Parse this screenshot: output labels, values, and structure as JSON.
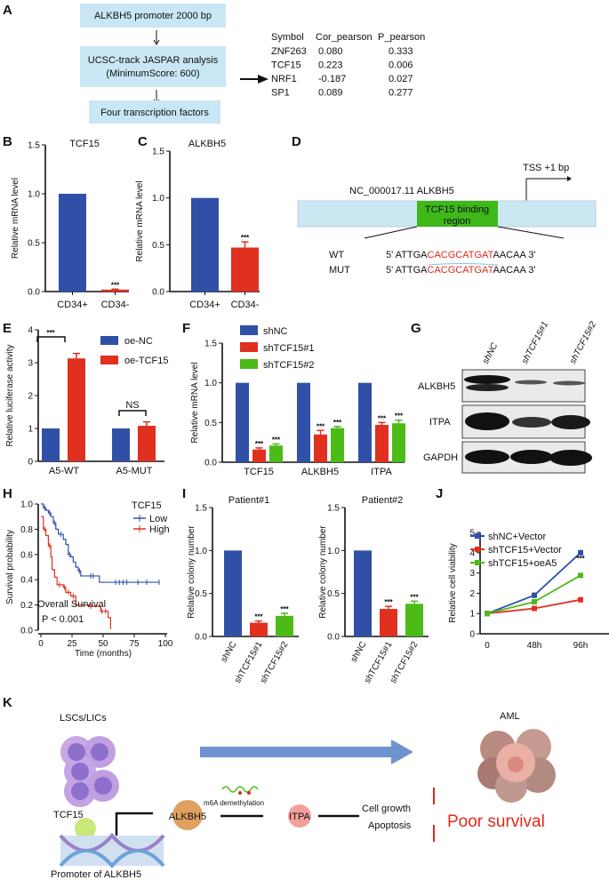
{
  "panel_labels": [
    "A",
    "B",
    "C",
    "D",
    "E",
    "F",
    "G",
    "H",
    "I",
    "J",
    "K"
  ],
  "panel_a": {
    "box1": "ALKBH5 promoter 2000 bp",
    "box2_line1": "UCSC-track JASPAR analysis",
    "box2_line2": "(MinimumScore: 600)",
    "box3": "Four transcription factors",
    "table": {
      "headers": [
        "Symbol",
        "Cor_pearson",
        "P_pearson"
      ],
      "rows": [
        [
          "ZNF263",
          "0.080",
          "0.333"
        ],
        [
          "TCF15",
          "0.223",
          "0.006"
        ],
        [
          "NRF1",
          "-0.187",
          "0.027"
        ],
        [
          "SP1",
          "0.089",
          "0.277"
        ]
      ]
    }
  },
  "panel_d": {
    "locus": "NC_000017.11   ALKBH5",
    "tss": "TSS +1 bp",
    "region_line1": "TCF15 binding",
    "region_line2": "region",
    "wt_label": "WT",
    "mut_label": "MUT",
    "seq_prefix": "5' ATTGA",
    "seq_site": "CACGCATGAT",
    "seq_suffix": "AACAA 3'"
  },
  "panel_g": {
    "lanes": [
      "shNC",
      "shTCF15#1",
      "shTCF15#2"
    ],
    "blots": [
      "ALKBH5",
      "ITPA",
      "GAPDH"
    ]
  },
  "panel_k": {
    "lsc": "LSCs/LICs",
    "aml": "AML",
    "tcf15": "TCF15",
    "promoter": "Promoter of ALKBH5",
    "alkbh5": "ALKBH5",
    "m6a": "m6A demethylation",
    "itpa": "ITPA",
    "growth": "Cell growth",
    "apoptosis": "Apoptosis",
    "outcome": "Poor survival"
  },
  "colors": {
    "blue": "#3050a8",
    "red": "#e03020",
    "green": "#4cbb17",
    "box": "#c9e6f5",
    "region": "#3fb81a"
  },
  "chart_data": [
    {
      "id": "B",
      "type": "bar",
      "title": "TCF15",
      "ylabel": "Relative mRNA level",
      "ylim": [
        0,
        1.5
      ],
      "yticks": [
        "0.0",
        "0.5",
        "1.0",
        "1.5"
      ],
      "categories": [
        "CD34+",
        "CD34-"
      ],
      "values": [
        1.0,
        0.02
      ],
      "errors": [
        0,
        0.005
      ],
      "significance": [
        "",
        "***"
      ],
      "colors": [
        "blue",
        "red"
      ]
    },
    {
      "id": "C",
      "type": "bar",
      "title": "ALKBH5",
      "ylabel": "Relative mRNA level",
      "ylim": [
        0,
        1.5
      ],
      "yticks": [
        "0.0",
        "0.5",
        "1.0",
        "1.5"
      ],
      "categories": [
        "CD34+",
        "CD34-"
      ],
      "values": [
        1.0,
        0.47
      ],
      "errors": [
        0,
        0.06
      ],
      "significance": [
        "",
        "***"
      ],
      "colors": [
        "blue",
        "red"
      ]
    },
    {
      "id": "E",
      "type": "bar",
      "ylabel": "Relative luciferase activity",
      "ylim": [
        0,
        4
      ],
      "yticks": [
        "0",
        "1",
        "2",
        "3",
        "4"
      ],
      "categories": [
        "A5-WT",
        "A5-MUT"
      ],
      "series": [
        {
          "name": "oe-NC",
          "values": [
            1.0,
            1.0
          ],
          "errors": [
            0,
            0
          ]
        },
        {
          "name": "oe-TCF15",
          "values": [
            3.13,
            1.08
          ],
          "errors": [
            0.15,
            0.12
          ]
        }
      ],
      "comparisons": [
        "***",
        "NS"
      ]
    },
    {
      "id": "F",
      "type": "bar",
      "ylabel": "Relative mRNA level",
      "ylim": [
        0,
        1.5
      ],
      "yticks": [
        "0.0",
        "0.5",
        "1.0",
        "1.5"
      ],
      "categories": [
        "TCF15",
        "ALKBH5",
        "ITPA"
      ],
      "series": [
        {
          "name": "shNC",
          "values": [
            1.0,
            1.0,
            1.0
          ],
          "errors": [
            0,
            0,
            0
          ]
        },
        {
          "name": "shTCF15#1",
          "values": [
            0.16,
            0.35,
            0.47
          ],
          "errors": [
            0.02,
            0.05,
            0.03
          ]
        },
        {
          "name": "shTCF15#2",
          "values": [
            0.21,
            0.43,
            0.49
          ],
          "errors": [
            0.02,
            0.02,
            0.04
          ]
        }
      ],
      "significance": "***"
    },
    {
      "id": "H",
      "type": "line",
      "subtype": "kaplan-meier",
      "ylabel": "Survival probability",
      "xlabel": "Time (months)",
      "xlim": [
        0,
        100
      ],
      "ylim": [
        0,
        1
      ],
      "xticks": [
        "0",
        "25",
        "50",
        "75",
        "100"
      ],
      "yticks": [
        "0.0",
        "0.2",
        "0.4",
        "0.6",
        "0.8",
        "1.0"
      ],
      "legend_title": "TCF15",
      "annotation": "Overall Survival",
      "pvalue": "P < 0.001",
      "series": [
        {
          "name": "Low",
          "color": "blue",
          "steps": [
            [
              0,
              1
            ],
            [
              2,
              0.97
            ],
            [
              4,
              0.95
            ],
            [
              6,
              0.93
            ],
            [
              8,
              0.9
            ],
            [
              10,
              0.85
            ],
            [
              12,
              0.8
            ],
            [
              14,
              0.76
            ],
            [
              18,
              0.72
            ],
            [
              20,
              0.68
            ],
            [
              22,
              0.6
            ],
            [
              24,
              0.58
            ],
            [
              26,
              0.54
            ],
            [
              28,
              0.5
            ],
            [
              30,
              0.47
            ],
            [
              32,
              0.43
            ],
            [
              46,
              0.43
            ],
            [
              47,
              0.38
            ],
            [
              95,
              0.38
            ]
          ],
          "censored": [
            [
              3,
              0.97
            ],
            [
              7,
              0.93
            ],
            [
              11,
              0.85
            ],
            [
              16,
              0.76
            ],
            [
              23,
              0.6
            ],
            [
              31,
              0.47
            ],
            [
              40,
              0.43
            ],
            [
              42,
              0.43
            ],
            [
              60,
              0.38
            ],
            [
              63,
              0.38
            ],
            [
              66,
              0.38
            ],
            [
              69,
              0.38
            ],
            [
              78,
              0.38
            ],
            [
              85,
              0.38
            ],
            [
              95,
              0.38
            ]
          ]
        },
        {
          "name": "High",
          "color": "red",
          "steps": [
            [
              0,
              0.9
            ],
            [
              2,
              0.8
            ],
            [
              4,
              0.75
            ],
            [
              6,
              0.67
            ],
            [
              8,
              0.58
            ],
            [
              9,
              0.48
            ],
            [
              11,
              0.42
            ],
            [
              13,
              0.36
            ],
            [
              18,
              0.34
            ],
            [
              20,
              0.3
            ],
            [
              24,
              0.27
            ],
            [
              28,
              0.2
            ],
            [
              38,
              0.19
            ],
            [
              48,
              0.15
            ],
            [
              54,
              0.1
            ],
            [
              56,
              0.01
            ]
          ],
          "censored": [
            [
              3,
              0.8
            ],
            [
              7,
              0.67
            ],
            [
              15,
              0.36
            ],
            [
              19,
              0.34
            ],
            [
              22,
              0.3
            ],
            [
              26,
              0.27
            ],
            [
              40,
              0.19
            ],
            [
              49,
              0.15
            ],
            [
              52,
              0.15
            ]
          ]
        }
      ]
    },
    {
      "id": "I1",
      "type": "bar",
      "title": "Patient#1",
      "ylabel": "Relative colony number",
      "ylim": [
        0,
        1.5
      ],
      "yticks": [
        "0.0",
        "0.5",
        "1.0",
        "1.5"
      ],
      "categories": [
        "shNC",
        "shTCF15#1",
        "shTCF15#2"
      ],
      "values": [
        1.0,
        0.16,
        0.24
      ],
      "errors": [
        0,
        0.02,
        0.03
      ],
      "significance": [
        "",
        "***",
        "***"
      ],
      "colors": [
        "blue",
        "red",
        "green"
      ]
    },
    {
      "id": "I2",
      "type": "bar",
      "title": "Patient#2",
      "ylabel": "Relative colony number",
      "ylim": [
        0,
        1.5
      ],
      "yticks": [
        "0.0",
        "0.5",
        "1.0",
        "1.5"
      ],
      "categories": [
        "shNC",
        "shTCF15#1",
        "shTCF15#2"
      ],
      "values": [
        1.0,
        0.32,
        0.38
      ],
      "errors": [
        0,
        0.03,
        0.03
      ],
      "significance": [
        "",
        "***",
        "***"
      ],
      "colors": [
        "blue",
        "red",
        "green"
      ]
    },
    {
      "id": "J",
      "type": "line",
      "ylabel": "Relative cell viability",
      "ylim": [
        0,
        5
      ],
      "yticks": [
        "0",
        "1",
        "2",
        "3",
        "4",
        "5"
      ],
      "categories": [
        "0",
        "48h",
        "96h"
      ],
      "significance": "***",
      "series": [
        {
          "name": "shNC+Vector",
          "color": "blue",
          "values": [
            1.0,
            1.9,
            4.0
          ],
          "errors": [
            0,
            0.15,
            0.15
          ]
        },
        {
          "name": "shTCF15+Vector",
          "color": "red",
          "values": [
            1.0,
            1.25,
            1.68
          ],
          "errors": [
            0,
            0.05,
            0.08
          ]
        },
        {
          "name": "shTCF15+oeA5",
          "color": "green",
          "values": [
            1.0,
            1.58,
            2.88
          ],
          "errors": [
            0,
            0.05,
            0.07
          ]
        }
      ]
    }
  ]
}
